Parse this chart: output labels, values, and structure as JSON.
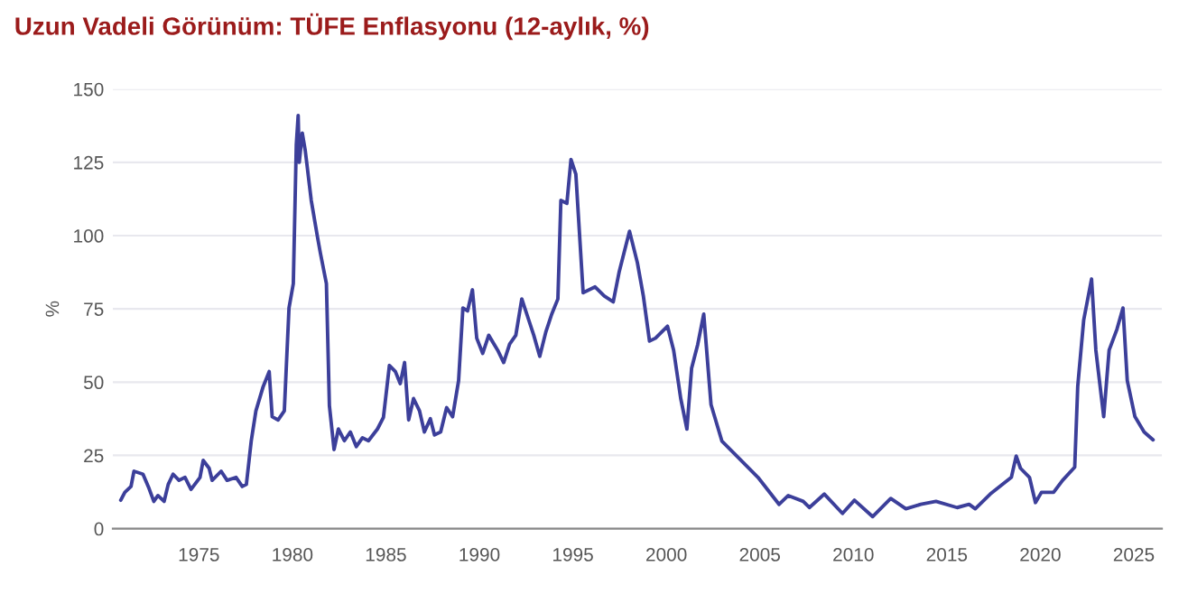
{
  "chart_data": {
    "type": "line",
    "title": "Uzun Vadeli Görünüm: TÜFE Enflasyonu (12-aylık, %)",
    "ylabel": "%",
    "x": [
      1970.82,
      1971.04,
      1971.37,
      1971.53,
      1972.01,
      1972.33,
      1972.59,
      1972.81,
      1973.14,
      1973.36,
      1973.62,
      1973.94,
      1974.26,
      1974.58,
      1975.06,
      1975.23,
      1975.55,
      1975.71,
      1976.19,
      1976.51,
      1976.99,
      1977.32,
      1977.54,
      1977.8,
      1978.05,
      1978.44,
      1978.76,
      1978.92,
      1979.24,
      1979.57,
      1979.82,
      1980.05,
      1980.21,
      1980.31,
      1980.37,
      1980.53,
      1980.69,
      1981.01,
      1981.33,
      1981.5,
      1981.82,
      1981.98,
      1982.23,
      1982.46,
      1982.78,
      1983.1,
      1983.42,
      1983.75,
      1984.07,
      1984.55,
      1984.87,
      1985.19,
      1985.51,
      1985.77,
      1986.0,
      1986.22,
      1986.48,
      1986.8,
      1987.06,
      1987.38,
      1987.6,
      1987.93,
      1988.25,
      1988.57,
      1988.89,
      1989.12,
      1989.37,
      1989.63,
      1989.86,
      1990.18,
      1990.5,
      1990.98,
      1991.3,
      1991.62,
      1991.95,
      1992.27,
      1992.59,
      1992.91,
      1993.23,
      1993.55,
      1993.87,
      1994.2,
      1994.36,
      1994.68,
      1994.9,
      1995.16,
      1995.55,
      1996.19,
      1996.68,
      1997.16,
      1997.48,
      1998.03,
      1998.45,
      1998.77,
      1999.1,
      1999.42,
      2000.06,
      2000.39,
      2000.77,
      2001.1,
      2001.35,
      2001.68,
      2002.0,
      2002.39,
      2002.97,
      2004.9,
      2006.03,
      2006.52,
      2007.32,
      2007.65,
      2008.45,
      2009.42,
      2010.06,
      2011.03,
      2012.0,
      2012.81,
      2013.61,
      2014.42,
      2015.55,
      2016.19,
      2016.52,
      2017.32,
      2018.45,
      2018.71,
      2018.94,
      2019.42,
      2019.74,
      2020.06,
      2020.71,
      2021.19,
      2021.84,
      2022.0,
      2022.32,
      2022.74,
      2022.97,
      2023.39,
      2023.68,
      2024.1,
      2024.42,
      2024.65,
      2025.06,
      2025.55,
      2026.03
    ],
    "series": [
      {
        "color": "#3c3f9a",
        "values": [
          9.7,
          12.4,
          14.4,
          19.6,
          18.6,
          13.8,
          9.3,
          11.3,
          9.3,
          15.1,
          18.6,
          16.5,
          17.5,
          13.4,
          17.5,
          23.3,
          20.6,
          16.5,
          19.6,
          16.5,
          17.5,
          14.4,
          15.1,
          29.9,
          40.2,
          48.5,
          53.6,
          38.2,
          37.1,
          40.2,
          75.3,
          83.6,
          131,
          141,
          125,
          135,
          129,
          112,
          100,
          94,
          83.6,
          42,
          27,
          34,
          30,
          33,
          28,
          31,
          30,
          34,
          38,
          55.7,
          53.6,
          49.5,
          56.7,
          37.1,
          44.4,
          40.2,
          33,
          37.5,
          32,
          33,
          41.3,
          38.2,
          50.5,
          75.3,
          74.3,
          81.5,
          65,
          59.8,
          66,
          60.9,
          56.7,
          63,
          66,
          78.4,
          72.2,
          66,
          58.8,
          67,
          73.2,
          78.4,
          112,
          111,
          126,
          121,
          80.5,
          82.5,
          79.4,
          77.4,
          87.7,
          101.5,
          90.8,
          79.4,
          64.0,
          65.0,
          69.1,
          60.9,
          44.4,
          34.0,
          54.7,
          62.9,
          73.2,
          42.3,
          29.9,
          17.5,
          8.3,
          11.3,
          9.3,
          7.2,
          11.8,
          5.2,
          9.7,
          4.1,
          10.3,
          6.8,
          8.3,
          9.3,
          7.2,
          8.3,
          6.8,
          11.8,
          17.5,
          24.8,
          20.6,
          17.5,
          8.9,
          12.4,
          12.4,
          16.5,
          21.0,
          48.5,
          71.2,
          85.2,
          60.9,
          38.2,
          60.9,
          68.1,
          75.3,
          50.5,
          38.2,
          33.0,
          30.3
        ]
      }
    ],
    "xlim": [
      1970.4,
      2026.5
    ],
    "xticks": [
      1975,
      1980,
      1985,
      1990,
      1995,
      2000,
      2005,
      2010,
      2015,
      2020,
      2025
    ],
    "ylim": [
      0,
      150
    ],
    "yticks": [
      0,
      25,
      50,
      75,
      100,
      125,
      150
    ],
    "grid": "y",
    "legend": false,
    "marker": "none",
    "line_style": "solid"
  }
}
